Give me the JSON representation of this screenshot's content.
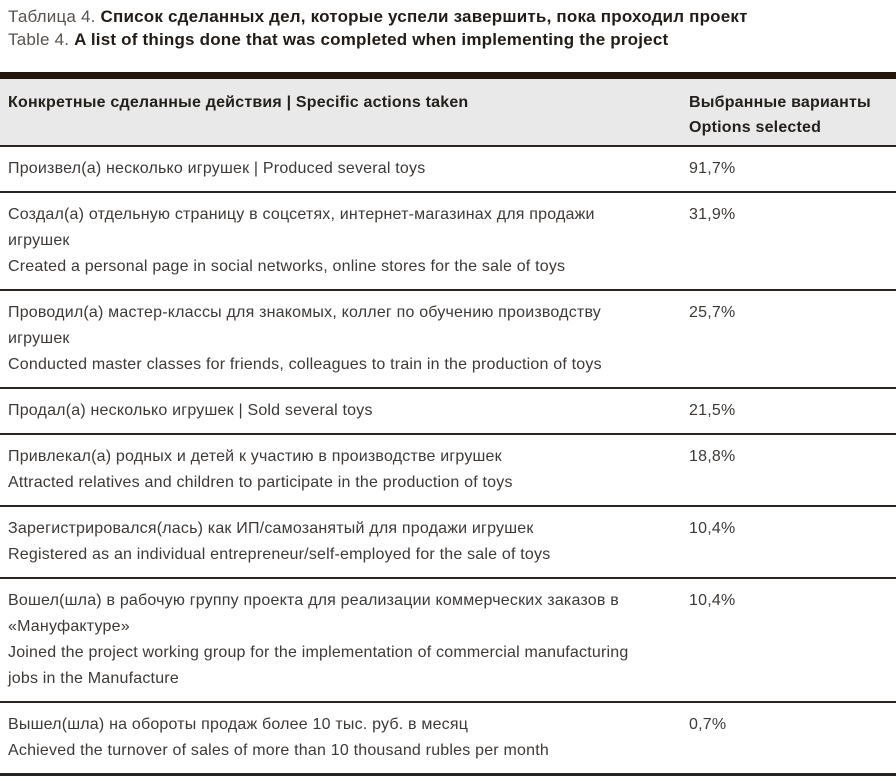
{
  "caption": {
    "ru_prefix": "Таблица 4.",
    "ru_bold": "Список сделанных дел, которые успели завершить, пока проходил проект",
    "en_prefix": "Table 4.",
    "en_bold": "A list of things done that was completed when implementing the project"
  },
  "table": {
    "header": {
      "actions_label": "Конкретные сделанные действия  |  Specific actions taken",
      "options_label_line1": "Выбранные варианты",
      "options_label_line2": "Options selected"
    },
    "rows": [
      {
        "lines": [
          "Произвел(а) несколько игрушек  |  Produced several toys"
        ],
        "value": "91,7%"
      },
      {
        "lines": [
          "Создал(а) отдельную страницу в соцсетях, интернет-магазинах для продажи",
          "игрушек",
          "Created a personal page in social networks, online stores for the sale of toys"
        ],
        "value": "31,9%"
      },
      {
        "lines": [
          "Проводил(а) мастер-классы для знакомых, коллег по обучению производству",
          "игрушек",
          "Conducted master classes for friends, colleagues to train in the production of toys"
        ],
        "value": "25,7%"
      },
      {
        "lines": [
          "Продал(а) несколько игрушек  |  Sold several toys"
        ],
        "value": "21,5%"
      },
      {
        "lines": [
          "Привлекал(а) родных и детей к участию в производстве игрушек",
          "Attracted relatives and children to participate in the production of toys"
        ],
        "value": "18,8%"
      },
      {
        "lines": [
          "Зарегистрировался(лась) как ИП/самозанятый для продажи игрушек",
          "Registered as an individual entrepreneur/self-employed for the sale of toys"
        ],
        "value": "10,4%"
      },
      {
        "lines": [
          "Вошел(шла) в рабочую группу проекта для реализации коммерческих заказов в",
          "«Мануфактуре»",
          "Joined the project working group for the implementation of commercial manufacturing",
          "jobs in the Manufacture"
        ],
        "value": "10,4%"
      },
      {
        "lines": [
          "Вышел(шла) на обороты продаж более 10 тыс. руб. в месяц",
          "Achieved the turnover of sales of more than 10 thousand rubles per month"
        ],
        "value": "0,7%"
      }
    ]
  },
  "colors": {
    "top_bar": "#241509",
    "header_bg": "#e9e9e9",
    "rule": "#2a2420",
    "body_text": "#3d3936",
    "heading_text": "#24201c",
    "caption_prefix": "#57524d"
  }
}
